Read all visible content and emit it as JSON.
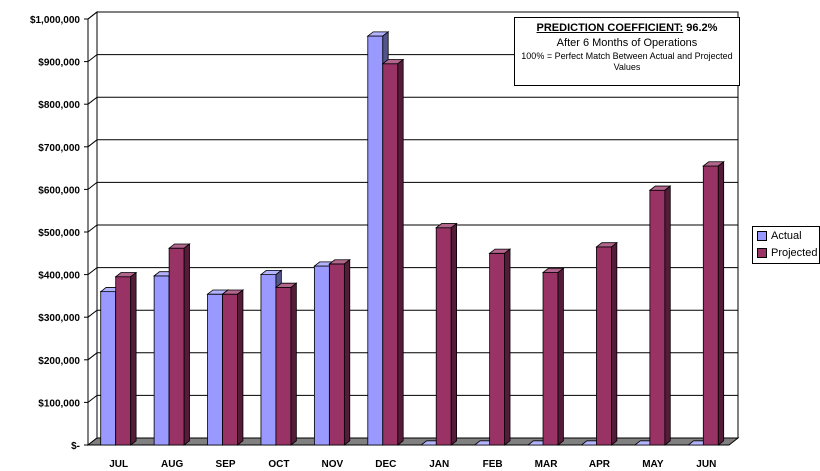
{
  "chart_data": {
    "type": "bar",
    "categories": [
      "JUL",
      "AUG",
      "SEP",
      "OCT",
      "NOV",
      "DEC",
      "JAN",
      "FEB",
      "MAR",
      "APR",
      "MAY",
      "JUN"
    ],
    "series": [
      {
        "name": "Actual",
        "color": "#9999ff",
        "values": [
          360000,
          397000,
          354000,
          400000,
          420000,
          960000,
          0,
          0,
          0,
          0,
          0,
          0
        ]
      },
      {
        "name": "Projected",
        "color": "#993366",
        "values": [
          395000,
          462000,
          354000,
          370000,
          425000,
          895000,
          510000,
          450000,
          405000,
          465000,
          598000,
          655000
        ]
      }
    ],
    "yticks": [
      "$-",
      "$100,000",
      "$200,000",
      "$300,000",
      "$400,000",
      "$500,000",
      "$600,000",
      "$700,000",
      "$800,000",
      "$900,000",
      "$1,000,000"
    ],
    "ylim": [
      0,
      1000000
    ],
    "grid": true,
    "legend_position": "right",
    "annotation": {
      "title_label": "PREDICTION COEFFICIENT:",
      "title_value": "96.2%",
      "line1": "After 6 Months of Operations",
      "line2": "100% = Perfect Match Between Actual and Projected Values"
    }
  }
}
